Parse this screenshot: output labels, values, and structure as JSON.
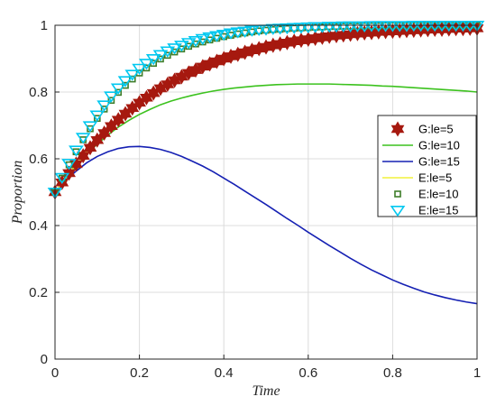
{
  "chart_data": {
    "type": "line",
    "xlabel": "Time",
    "ylabel": "Proportion",
    "xlim": [
      0,
      1
    ],
    "ylim": [
      0,
      1
    ],
    "xticks": [
      "0",
      "0.2",
      "0.4",
      "0.6",
      "0.8",
      "1"
    ],
    "yticks": [
      "0",
      "0.2",
      "0.4",
      "0.6",
      "0.8",
      "1"
    ],
    "grid": true,
    "legend_position": "right",
    "series": [
      {
        "name": "G:le=5",
        "style": "marker",
        "marker": "hexagram",
        "color": "#a6190f",
        "x": [
          0,
          0.0167,
          0.0333,
          0.05,
          0.0667,
          0.0833,
          0.1,
          0.1167,
          0.1333,
          0.15,
          0.1667,
          0.1833,
          0.2,
          0.2167,
          0.2333,
          0.25,
          0.2667,
          0.2833,
          0.3,
          0.3167,
          0.3333,
          0.35,
          0.3667,
          0.3833,
          0.4,
          0.4167,
          0.4333,
          0.45,
          0.4667,
          0.4833,
          0.5,
          0.5167,
          0.5333,
          0.55,
          0.5667,
          0.5833,
          0.6,
          0.6167,
          0.6333,
          0.65,
          0.6667,
          0.6833,
          0.7,
          0.7167,
          0.7333,
          0.75,
          0.7667,
          0.7833,
          0.8,
          0.8167,
          0.8333,
          0.85,
          0.8667,
          0.8833,
          0.9,
          0.9167,
          0.9333,
          0.95,
          0.9667,
          0.9833,
          1
        ],
        "y": [
          0.5,
          0.529,
          0.557,
          0.584,
          0.609,
          0.633,
          0.656,
          0.677,
          0.698,
          0.717,
          0.735,
          0.752,
          0.768,
          0.783,
          0.797,
          0.811,
          0.823,
          0.835,
          0.846,
          0.857,
          0.866,
          0.876,
          0.884,
          0.892,
          0.9,
          0.907,
          0.913,
          0.919,
          0.925,
          0.93,
          0.935,
          0.94,
          0.944,
          0.948,
          0.952,
          0.955,
          0.958,
          0.961,
          0.964,
          0.967,
          0.969,
          0.971,
          0.973,
          0.975,
          0.977,
          0.978,
          0.98,
          0.981,
          0.982,
          0.983,
          0.984,
          0.985,
          0.986,
          0.987,
          0.988,
          0.988,
          0.989,
          0.99,
          0.99,
          0.991,
          0.991
        ]
      },
      {
        "name": "G:le=10",
        "style": "line",
        "color": "#3cc21e",
        "x": [
          0,
          0.025,
          0.05,
          0.075,
          0.1,
          0.125,
          0.15,
          0.175,
          0.2,
          0.225,
          0.25,
          0.275,
          0.3,
          0.325,
          0.35,
          0.375,
          0.4,
          0.425,
          0.45,
          0.475,
          0.5,
          0.525,
          0.55,
          0.575,
          0.6,
          0.625,
          0.65,
          0.675,
          0.7,
          0.725,
          0.75,
          0.775,
          0.8,
          0.825,
          0.85,
          0.875,
          0.9,
          0.925,
          0.95,
          0.975,
          1
        ],
        "y": [
          0.5,
          0.54,
          0.578,
          0.613,
          0.644,
          0.671,
          0.695,
          0.715,
          0.733,
          0.748,
          0.762,
          0.773,
          0.782,
          0.79,
          0.797,
          0.803,
          0.808,
          0.812,
          0.815,
          0.818,
          0.82,
          0.822,
          0.823,
          0.824,
          0.824,
          0.824,
          0.824,
          0.823,
          0.822,
          0.821,
          0.82,
          0.818,
          0.817,
          0.815,
          0.813,
          0.811,
          0.809,
          0.807,
          0.805,
          0.803,
          0.8
        ]
      },
      {
        "name": "G:le=15",
        "style": "line",
        "color": "#1520b3",
        "x": [
          0,
          0.025,
          0.05,
          0.075,
          0.1,
          0.125,
          0.15,
          0.175,
          0.2,
          0.225,
          0.25,
          0.275,
          0.3,
          0.325,
          0.35,
          0.375,
          0.4,
          0.425,
          0.45,
          0.475,
          0.5,
          0.525,
          0.55,
          0.575,
          0.6,
          0.625,
          0.65,
          0.675,
          0.7,
          0.725,
          0.75,
          0.775,
          0.8,
          0.825,
          0.85,
          0.875,
          0.9,
          0.925,
          0.95,
          0.975,
          1
        ],
        "y": [
          0.5,
          0.535,
          0.563,
          0.588,
          0.607,
          0.621,
          0.631,
          0.636,
          0.637,
          0.634,
          0.628,
          0.619,
          0.607,
          0.593,
          0.578,
          0.561,
          0.542,
          0.523,
          0.503,
          0.483,
          0.463,
          0.442,
          0.421,
          0.401,
          0.38,
          0.36,
          0.34,
          0.321,
          0.302,
          0.284,
          0.267,
          0.252,
          0.237,
          0.224,
          0.212,
          0.201,
          0.192,
          0.184,
          0.177,
          0.171,
          0.166
        ]
      },
      {
        "name": "E:le=5",
        "style": "line",
        "color": "#f2f23c",
        "x": [
          0,
          0.025,
          0.05,
          0.075,
          0.1,
          0.125,
          0.15,
          0.175,
          0.2,
          0.225,
          0.25,
          0.275,
          0.3,
          0.325,
          0.35,
          0.375,
          0.4,
          0.425,
          0.45,
          0.475,
          0.5,
          0.525,
          0.55,
          0.575,
          0.6,
          0.625,
          0.65,
          0.675,
          0.7,
          0.725,
          0.75,
          0.775,
          0.8,
          0.825,
          0.85,
          0.875,
          0.9,
          0.925,
          0.95,
          0.975,
          1
        ],
        "y": [
          0.5,
          0.542,
          0.583,
          0.621,
          0.657,
          0.69,
          0.72,
          0.748,
          0.773,
          0.795,
          0.815,
          0.833,
          0.849,
          0.864,
          0.877,
          0.888,
          0.898,
          0.908,
          0.916,
          0.924,
          0.93,
          0.937,
          0.942,
          0.947,
          0.952,
          0.956,
          0.959,
          0.963,
          0.966,
          0.969,
          0.971,
          0.973,
          0.975,
          0.977,
          0.979,
          0.981,
          0.982,
          0.983,
          0.984,
          0.986,
          0.986
        ]
      },
      {
        "name": "E:le=10",
        "style": "marker",
        "marker": "square",
        "color": "#3e7d2a",
        "x": [
          0,
          0.0167,
          0.0333,
          0.05,
          0.0667,
          0.0833,
          0.1,
          0.1167,
          0.1333,
          0.15,
          0.1667,
          0.1833,
          0.2,
          0.2167,
          0.2333,
          0.25,
          0.2667,
          0.2833,
          0.3,
          0.3167,
          0.3333,
          0.35,
          0.3667,
          0.3833,
          0.4,
          0.4167,
          0.4333,
          0.45,
          0.4667,
          0.4833,
          0.5,
          0.5167,
          0.5333,
          0.55,
          0.5667,
          0.5833,
          0.6,
          0.6167,
          0.6333,
          0.65,
          0.6667,
          0.6833,
          0.7,
          0.7167,
          0.7333,
          0.75,
          0.7667,
          0.7833,
          0.8,
          0.8167,
          0.8333,
          0.85,
          0.8667,
          0.8833,
          0.9,
          0.9167,
          0.9333,
          0.95,
          0.9667,
          0.9833,
          1
        ],
        "y": [
          0.5,
          0.542,
          0.582,
          0.621,
          0.657,
          0.69,
          0.721,
          0.749,
          0.775,
          0.799,
          0.82,
          0.839,
          0.857,
          0.872,
          0.886,
          0.899,
          0.91,
          0.92,
          0.929,
          0.937,
          0.944,
          0.95,
          0.956,
          0.961,
          0.966,
          0.97,
          0.974,
          0.977,
          0.98,
          0.983,
          0.985,
          0.987,
          0.988,
          0.99,
          0.991,
          0.992,
          0.993,
          0.994,
          0.995,
          0.996,
          0.996,
          0.997,
          0.997,
          0.997,
          0.998,
          0.998,
          0.998,
          0.999,
          0.999,
          0.999,
          0.999,
          0.999,
          0.999,
          0.999,
          0.999,
          1,
          1,
          1,
          1,
          1,
          1
        ]
      },
      {
        "name": "E:le=15",
        "style": "marker",
        "marker": "triangle-down",
        "color": "#00c8f0",
        "x": [
          0,
          0.0167,
          0.0333,
          0.05,
          0.0667,
          0.0833,
          0.1,
          0.1167,
          0.1333,
          0.15,
          0.1667,
          0.1833,
          0.2,
          0.2167,
          0.2333,
          0.25,
          0.2667,
          0.2833,
          0.3,
          0.3167,
          0.3333,
          0.35,
          0.3667,
          0.3833,
          0.4,
          0.4167,
          0.4333,
          0.45,
          0.4667,
          0.4833,
          0.5,
          0.5167,
          0.5333,
          0.55,
          0.5667,
          0.5833,
          0.6,
          0.6167,
          0.6333,
          0.65,
          0.6667,
          0.6833,
          0.7,
          0.7167,
          0.7333,
          0.75,
          0.7667,
          0.7833,
          0.8,
          0.8167,
          0.8333,
          0.85,
          0.8667,
          0.8833,
          0.9,
          0.9167,
          0.9333,
          0.95,
          0.9667,
          0.9833,
          1
        ],
        "y": [
          0.5,
          0.544,
          0.586,
          0.626,
          0.664,
          0.699,
          0.731,
          0.761,
          0.788,
          0.812,
          0.834,
          0.853,
          0.871,
          0.886,
          0.9,
          0.912,
          0.923,
          0.932,
          0.94,
          0.948,
          0.954,
          0.96,
          0.965,
          0.969,
          0.973,
          0.977,
          0.98,
          0.982,
          0.985,
          0.987,
          0.988,
          0.99,
          0.991,
          0.992,
          0.993,
          0.994,
          0.995,
          0.996,
          0.996,
          0.997,
          0.997,
          0.998,
          0.998,
          0.998,
          0.998,
          0.999,
          0.999,
          0.999,
          0.999,
          0.999,
          0.999,
          1,
          1,
          1,
          1,
          1,
          1,
          1,
          1,
          1,
          1
        ]
      }
    ]
  }
}
